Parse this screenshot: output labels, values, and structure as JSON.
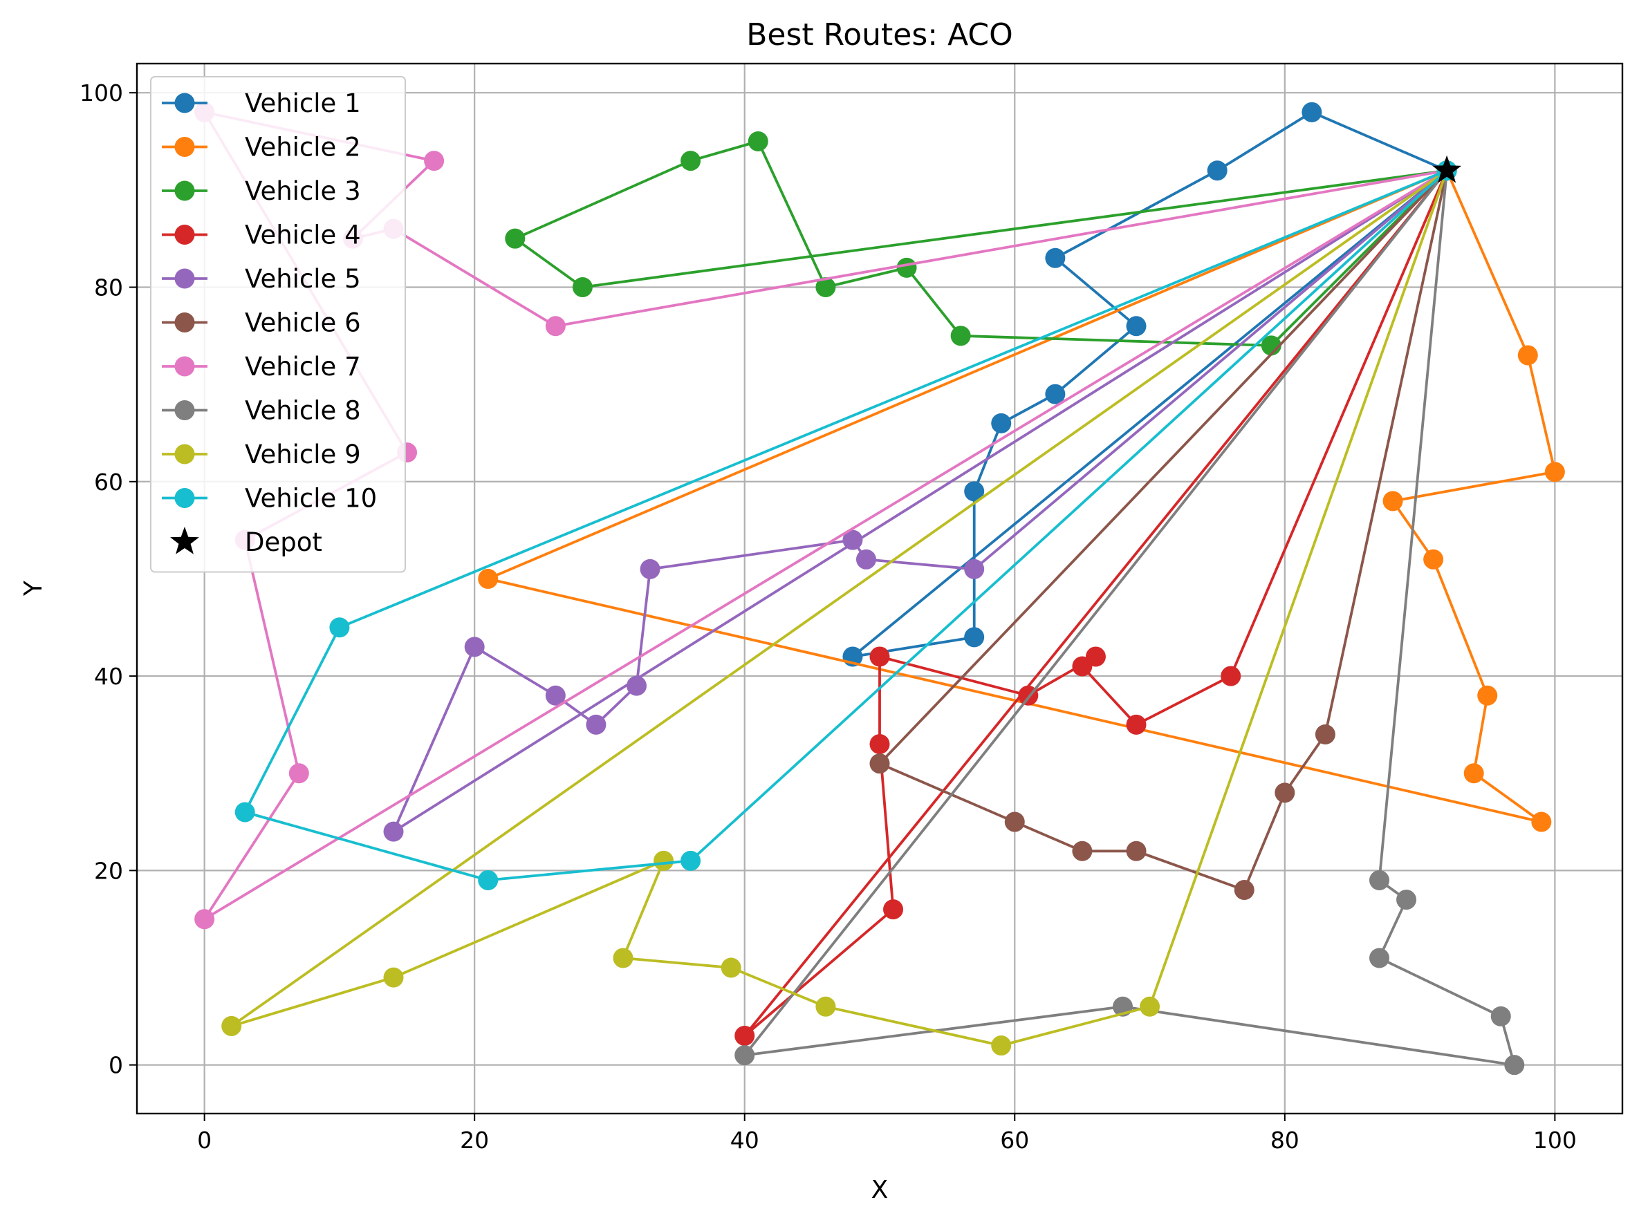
{
  "chart_data": {
    "type": "line",
    "title": "Best Routes: ACO",
    "xlabel": "X",
    "ylabel": "Y",
    "xlim": [
      -5,
      105
    ],
    "ylim": [
      -5,
      103
    ],
    "xticks": [
      0,
      20,
      40,
      60,
      80,
      100
    ],
    "yticks": [
      0,
      20,
      40,
      60,
      80,
      100
    ],
    "grid": true,
    "legend_position": "upper-left",
    "depot": {
      "name": "Depot",
      "x": 92,
      "y": 92,
      "color": "#000000"
    },
    "series": [
      {
        "name": "Vehicle 1",
        "color": "#1f77b4",
        "points": [
          [
            92,
            92
          ],
          [
            82,
            98
          ],
          [
            75,
            92
          ],
          [
            63,
            83
          ],
          [
            69,
            76
          ],
          [
            63,
            69
          ],
          [
            59,
            66
          ],
          [
            57,
            59
          ],
          [
            57,
            44
          ],
          [
            48,
            42
          ],
          [
            92,
            92
          ]
        ]
      },
      {
        "name": "Vehicle 2",
        "color": "#ff7f0e",
        "points": [
          [
            92,
            92
          ],
          [
            98,
            73
          ],
          [
            100,
            61
          ],
          [
            88,
            58
          ],
          [
            91,
            52
          ],
          [
            95,
            38
          ],
          [
            94,
            30
          ],
          [
            99,
            25
          ],
          [
            21,
            50
          ],
          [
            92,
            92
          ]
        ]
      },
      {
        "name": "Vehicle 3",
        "color": "#2ca02c",
        "points": [
          [
            92,
            92
          ],
          [
            28,
            80
          ],
          [
            23,
            85
          ],
          [
            36,
            93
          ],
          [
            41,
            95
          ],
          [
            46,
            80
          ],
          [
            52,
            82
          ],
          [
            56,
            75
          ],
          [
            79,
            74
          ],
          [
            92,
            92
          ]
        ]
      },
      {
        "name": "Vehicle 4",
        "color": "#d62728",
        "points": [
          [
            92,
            92
          ],
          [
            76,
            40
          ],
          [
            69,
            35
          ],
          [
            65,
            41
          ],
          [
            66,
            42
          ],
          [
            61,
            38
          ],
          [
            50,
            42
          ],
          [
            50,
            33
          ],
          [
            51,
            16
          ],
          [
            40,
            3
          ],
          [
            92,
            92
          ]
        ]
      },
      {
        "name": "Vehicle 5",
        "color": "#9467bd",
        "points": [
          [
            92,
            92
          ],
          [
            57,
            51
          ],
          [
            49,
            52
          ],
          [
            48,
            54
          ],
          [
            33,
            51
          ],
          [
            32,
            39
          ],
          [
            29,
            35
          ],
          [
            26,
            38
          ],
          [
            20,
            43
          ],
          [
            14,
            24
          ],
          [
            92,
            92
          ]
        ]
      },
      {
        "name": "Vehicle 6",
        "color": "#8c564b",
        "points": [
          [
            92,
            92
          ],
          [
            83,
            34
          ],
          [
            80,
            28
          ],
          [
            77,
            18
          ],
          [
            69,
            22
          ],
          [
            65,
            22
          ],
          [
            60,
            25
          ],
          [
            50,
            31
          ],
          [
            92,
            92
          ]
        ]
      },
      {
        "name": "Vehicle 7",
        "color": "#e377c2",
        "points": [
          [
            92,
            92
          ],
          [
            26,
            76
          ],
          [
            14,
            86
          ],
          [
            11,
            85
          ],
          [
            17,
            93
          ],
          [
            0,
            98
          ],
          [
            15,
            63
          ],
          [
            3,
            54
          ],
          [
            7,
            30
          ],
          [
            0,
            15
          ],
          [
            92,
            92
          ]
        ]
      },
      {
        "name": "Vehicle 8",
        "color": "#7f7f7f",
        "points": [
          [
            92,
            92
          ],
          [
            87,
            19
          ],
          [
            89,
            17
          ],
          [
            87,
            11
          ],
          [
            96,
            5
          ],
          [
            97,
            0
          ],
          [
            68,
            6
          ],
          [
            40,
            1
          ],
          [
            92,
            92
          ]
        ]
      },
      {
        "name": "Vehicle 9",
        "color": "#bcbd22",
        "points": [
          [
            92,
            92
          ],
          [
            70,
            6
          ],
          [
            59,
            2
          ],
          [
            46,
            6
          ],
          [
            39,
            10
          ],
          [
            31,
            11
          ],
          [
            34,
            21
          ],
          [
            14,
            9
          ],
          [
            2,
            4
          ],
          [
            92,
            92
          ]
        ]
      },
      {
        "name": "Vehicle 10",
        "color": "#17becf",
        "points": [
          [
            92,
            92
          ],
          [
            36,
            21
          ],
          [
            21,
            19
          ],
          [
            3,
            26
          ],
          [
            10,
            45
          ],
          [
            92,
            92
          ]
        ]
      }
    ]
  }
}
